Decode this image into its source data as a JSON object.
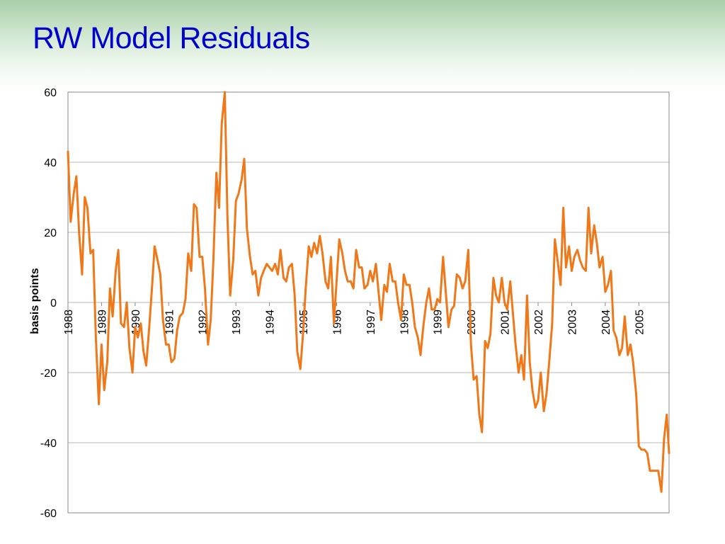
{
  "slide": {
    "title": "RW Model Residuals"
  },
  "chart_data": {
    "type": "line",
    "title": "",
    "xlabel": "",
    "ylabel": "basis points",
    "ylim": [
      -60,
      60
    ],
    "yticks": [
      60,
      40,
      20,
      0,
      -20,
      -40,
      -60
    ],
    "xlim": [
      1988,
      2005.9
    ],
    "xticks": [
      1988,
      1989,
      1990,
      1991,
      1992,
      1993,
      1994,
      1995,
      1996,
      1997,
      1998,
      1999,
      2000,
      2001,
      2002,
      2003,
      2004,
      2005
    ],
    "grid": true,
    "legend": "none",
    "line_color": "#f07818",
    "series": [
      {
        "values": [
          [
            1988.0,
            43
          ],
          [
            1988.08,
            23
          ],
          [
            1988.17,
            31
          ],
          [
            1988.25,
            36
          ],
          [
            1988.33,
            20
          ],
          [
            1988.42,
            8
          ],
          [
            1988.5,
            30
          ],
          [
            1988.58,
            27
          ],
          [
            1988.67,
            14
          ],
          [
            1988.75,
            15
          ],
          [
            1988.83,
            -10
          ],
          [
            1988.92,
            -29
          ],
          [
            1989.0,
            -12
          ],
          [
            1989.08,
            -25
          ],
          [
            1989.17,
            -17
          ],
          [
            1989.25,
            4
          ],
          [
            1989.33,
            -4
          ],
          [
            1989.42,
            9
          ],
          [
            1989.5,
            15
          ],
          [
            1989.58,
            -6
          ],
          [
            1989.67,
            -7
          ],
          [
            1989.75,
            0
          ],
          [
            1989.83,
            -13
          ],
          [
            1989.92,
            -20
          ],
          [
            1990.0,
            -7
          ],
          [
            1990.08,
            -10
          ],
          [
            1990.17,
            -6
          ],
          [
            1990.25,
            -14
          ],
          [
            1990.33,
            -18
          ],
          [
            1990.42,
            -7
          ],
          [
            1990.5,
            4
          ],
          [
            1990.58,
            16
          ],
          [
            1990.67,
            12
          ],
          [
            1990.75,
            8
          ],
          [
            1990.83,
            -5
          ],
          [
            1990.92,
            -12
          ],
          [
            1991.0,
            -12
          ],
          [
            1991.08,
            -17
          ],
          [
            1991.17,
            -16
          ],
          [
            1991.25,
            -8
          ],
          [
            1991.33,
            -4
          ],
          [
            1991.42,
            -3
          ],
          [
            1991.5,
            1
          ],
          [
            1991.58,
            14
          ],
          [
            1991.67,
            9
          ],
          [
            1991.75,
            28
          ],
          [
            1991.83,
            27
          ],
          [
            1991.92,
            13
          ],
          [
            1992.0,
            13
          ],
          [
            1992.08,
            4
          ],
          [
            1992.17,
            -12
          ],
          [
            1992.25,
            -5
          ],
          [
            1992.33,
            12
          ],
          [
            1992.42,
            37
          ],
          [
            1992.5,
            27
          ],
          [
            1992.58,
            51
          ],
          [
            1992.67,
            60
          ],
          [
            1992.75,
            24
          ],
          [
            1992.83,
            2
          ],
          [
            1992.92,
            12
          ],
          [
            1993.0,
            29
          ],
          [
            1993.08,
            31
          ],
          [
            1993.17,
            35
          ],
          [
            1993.25,
            41
          ],
          [
            1993.33,
            21
          ],
          [
            1993.42,
            13
          ],
          [
            1993.5,
            8
          ],
          [
            1993.58,
            9
          ],
          [
            1993.67,
            2
          ],
          [
            1993.75,
            7
          ],
          [
            1993.83,
            9
          ],
          [
            1993.92,
            11
          ],
          [
            1994.0,
            10
          ],
          [
            1994.08,
            9
          ],
          [
            1994.17,
            11
          ],
          [
            1994.25,
            8
          ],
          [
            1994.33,
            15
          ],
          [
            1994.42,
            7
          ],
          [
            1994.5,
            6
          ],
          [
            1994.58,
            10
          ],
          [
            1994.67,
            11
          ],
          [
            1994.75,
            2
          ],
          [
            1994.83,
            -14
          ],
          [
            1994.92,
            -19
          ],
          [
            1995.0,
            -9
          ],
          [
            1995.08,
            4
          ],
          [
            1995.17,
            16
          ],
          [
            1995.25,
            13
          ],
          [
            1995.33,
            17
          ],
          [
            1995.42,
            14
          ],
          [
            1995.5,
            19
          ],
          [
            1995.58,
            14
          ],
          [
            1995.67,
            6
          ],
          [
            1995.75,
            4
          ],
          [
            1995.83,
            13
          ],
          [
            1995.92,
            -6
          ],
          [
            1996.0,
            6
          ],
          [
            1996.08,
            18
          ],
          [
            1996.17,
            14
          ],
          [
            1996.25,
            9
          ],
          [
            1996.33,
            6
          ],
          [
            1996.42,
            6
          ],
          [
            1996.5,
            4
          ],
          [
            1996.58,
            15
          ],
          [
            1996.67,
            10
          ],
          [
            1996.75,
            10
          ],
          [
            1996.83,
            4
          ],
          [
            1996.92,
            5
          ],
          [
            1997.0,
            9
          ],
          [
            1997.08,
            6
          ],
          [
            1997.17,
            11
          ],
          [
            1997.25,
            3
          ],
          [
            1997.33,
            -5
          ],
          [
            1997.42,
            5
          ],
          [
            1997.5,
            3
          ],
          [
            1997.58,
            11
          ],
          [
            1997.67,
            6
          ],
          [
            1997.75,
            6
          ],
          [
            1997.83,
            0
          ],
          [
            1997.92,
            -5
          ],
          [
            1998.0,
            8
          ],
          [
            1998.08,
            5
          ],
          [
            1998.17,
            5
          ],
          [
            1998.25,
            0
          ],
          [
            1998.33,
            -7
          ],
          [
            1998.42,
            -10
          ],
          [
            1998.5,
            -15
          ],
          [
            1998.58,
            -7
          ],
          [
            1998.67,
            0
          ],
          [
            1998.75,
            4
          ],
          [
            1998.83,
            -2
          ],
          [
            1998.92,
            -2
          ],
          [
            1999.0,
            1
          ],
          [
            1999.08,
            0
          ],
          [
            1999.17,
            13
          ],
          [
            1999.25,
            3
          ],
          [
            1999.33,
            -7
          ],
          [
            1999.42,
            -2
          ],
          [
            1999.5,
            -1
          ],
          [
            1999.58,
            8
          ],
          [
            1999.67,
            7
          ],
          [
            1999.75,
            4
          ],
          [
            1999.83,
            6
          ],
          [
            1999.92,
            15
          ],
          [
            2000.0,
            -12
          ],
          [
            2000.08,
            -22
          ],
          [
            2000.17,
            -21
          ],
          [
            2000.25,
            -32
          ],
          [
            2000.33,
            -37
          ],
          [
            2000.42,
            -11
          ],
          [
            2000.5,
            -13
          ],
          [
            2000.58,
            -9
          ],
          [
            2000.67,
            7
          ],
          [
            2000.75,
            2
          ],
          [
            2000.83,
            0
          ],
          [
            2000.92,
            7
          ],
          [
            2001.0,
            0
          ],
          [
            2001.08,
            -2
          ],
          [
            2001.17,
            6
          ],
          [
            2001.25,
            -3
          ],
          [
            2001.33,
            -12
          ],
          [
            2001.42,
            -20
          ],
          [
            2001.5,
            -15
          ],
          [
            2001.58,
            -22
          ],
          [
            2001.67,
            2
          ],
          [
            2001.75,
            -17
          ],
          [
            2001.83,
            -25
          ],
          [
            2001.92,
            -30
          ],
          [
            2002.0,
            -28
          ],
          [
            2002.08,
            -20
          ],
          [
            2002.17,
            -31
          ],
          [
            2002.25,
            -26
          ],
          [
            2002.33,
            -17
          ],
          [
            2002.42,
            -6
          ],
          [
            2002.5,
            18
          ],
          [
            2002.58,
            12
          ],
          [
            2002.67,
            5
          ],
          [
            2002.75,
            27
          ],
          [
            2002.83,
            10
          ],
          [
            2002.92,
            16
          ],
          [
            2003.0,
            9
          ],
          [
            2003.08,
            13
          ],
          [
            2003.17,
            15
          ],
          [
            2003.25,
            12
          ],
          [
            2003.33,
            10
          ],
          [
            2003.42,
            9
          ],
          [
            2003.5,
            27
          ],
          [
            2003.58,
            14
          ],
          [
            2003.67,
            22
          ],
          [
            2003.75,
            17
          ],
          [
            2003.83,
            10
          ],
          [
            2003.92,
            13
          ],
          [
            2004.0,
            3
          ],
          [
            2004.08,
            5
          ],
          [
            2004.17,
            9
          ],
          [
            2004.25,
            -8
          ],
          [
            2004.33,
            -10
          ],
          [
            2004.42,
            -15
          ],
          [
            2004.5,
            -13
          ],
          [
            2004.58,
            -4
          ],
          [
            2004.67,
            -15
          ],
          [
            2004.75,
            -12
          ],
          [
            2004.83,
            -17
          ],
          [
            2004.92,
            -26
          ],
          [
            2005.0,
            -41
          ],
          [
            2005.08,
            -42
          ],
          [
            2005.17,
            -42
          ],
          [
            2005.25,
            -43
          ],
          [
            2005.33,
            -48
          ],
          [
            2005.42,
            -48
          ],
          [
            2005.5,
            -48
          ],
          [
            2005.58,
            -48
          ],
          [
            2005.67,
            -54
          ],
          [
            2005.75,
            -39
          ],
          [
            2005.83,
            -32
          ],
          [
            2005.9,
            -43
          ]
        ]
      }
    ]
  }
}
